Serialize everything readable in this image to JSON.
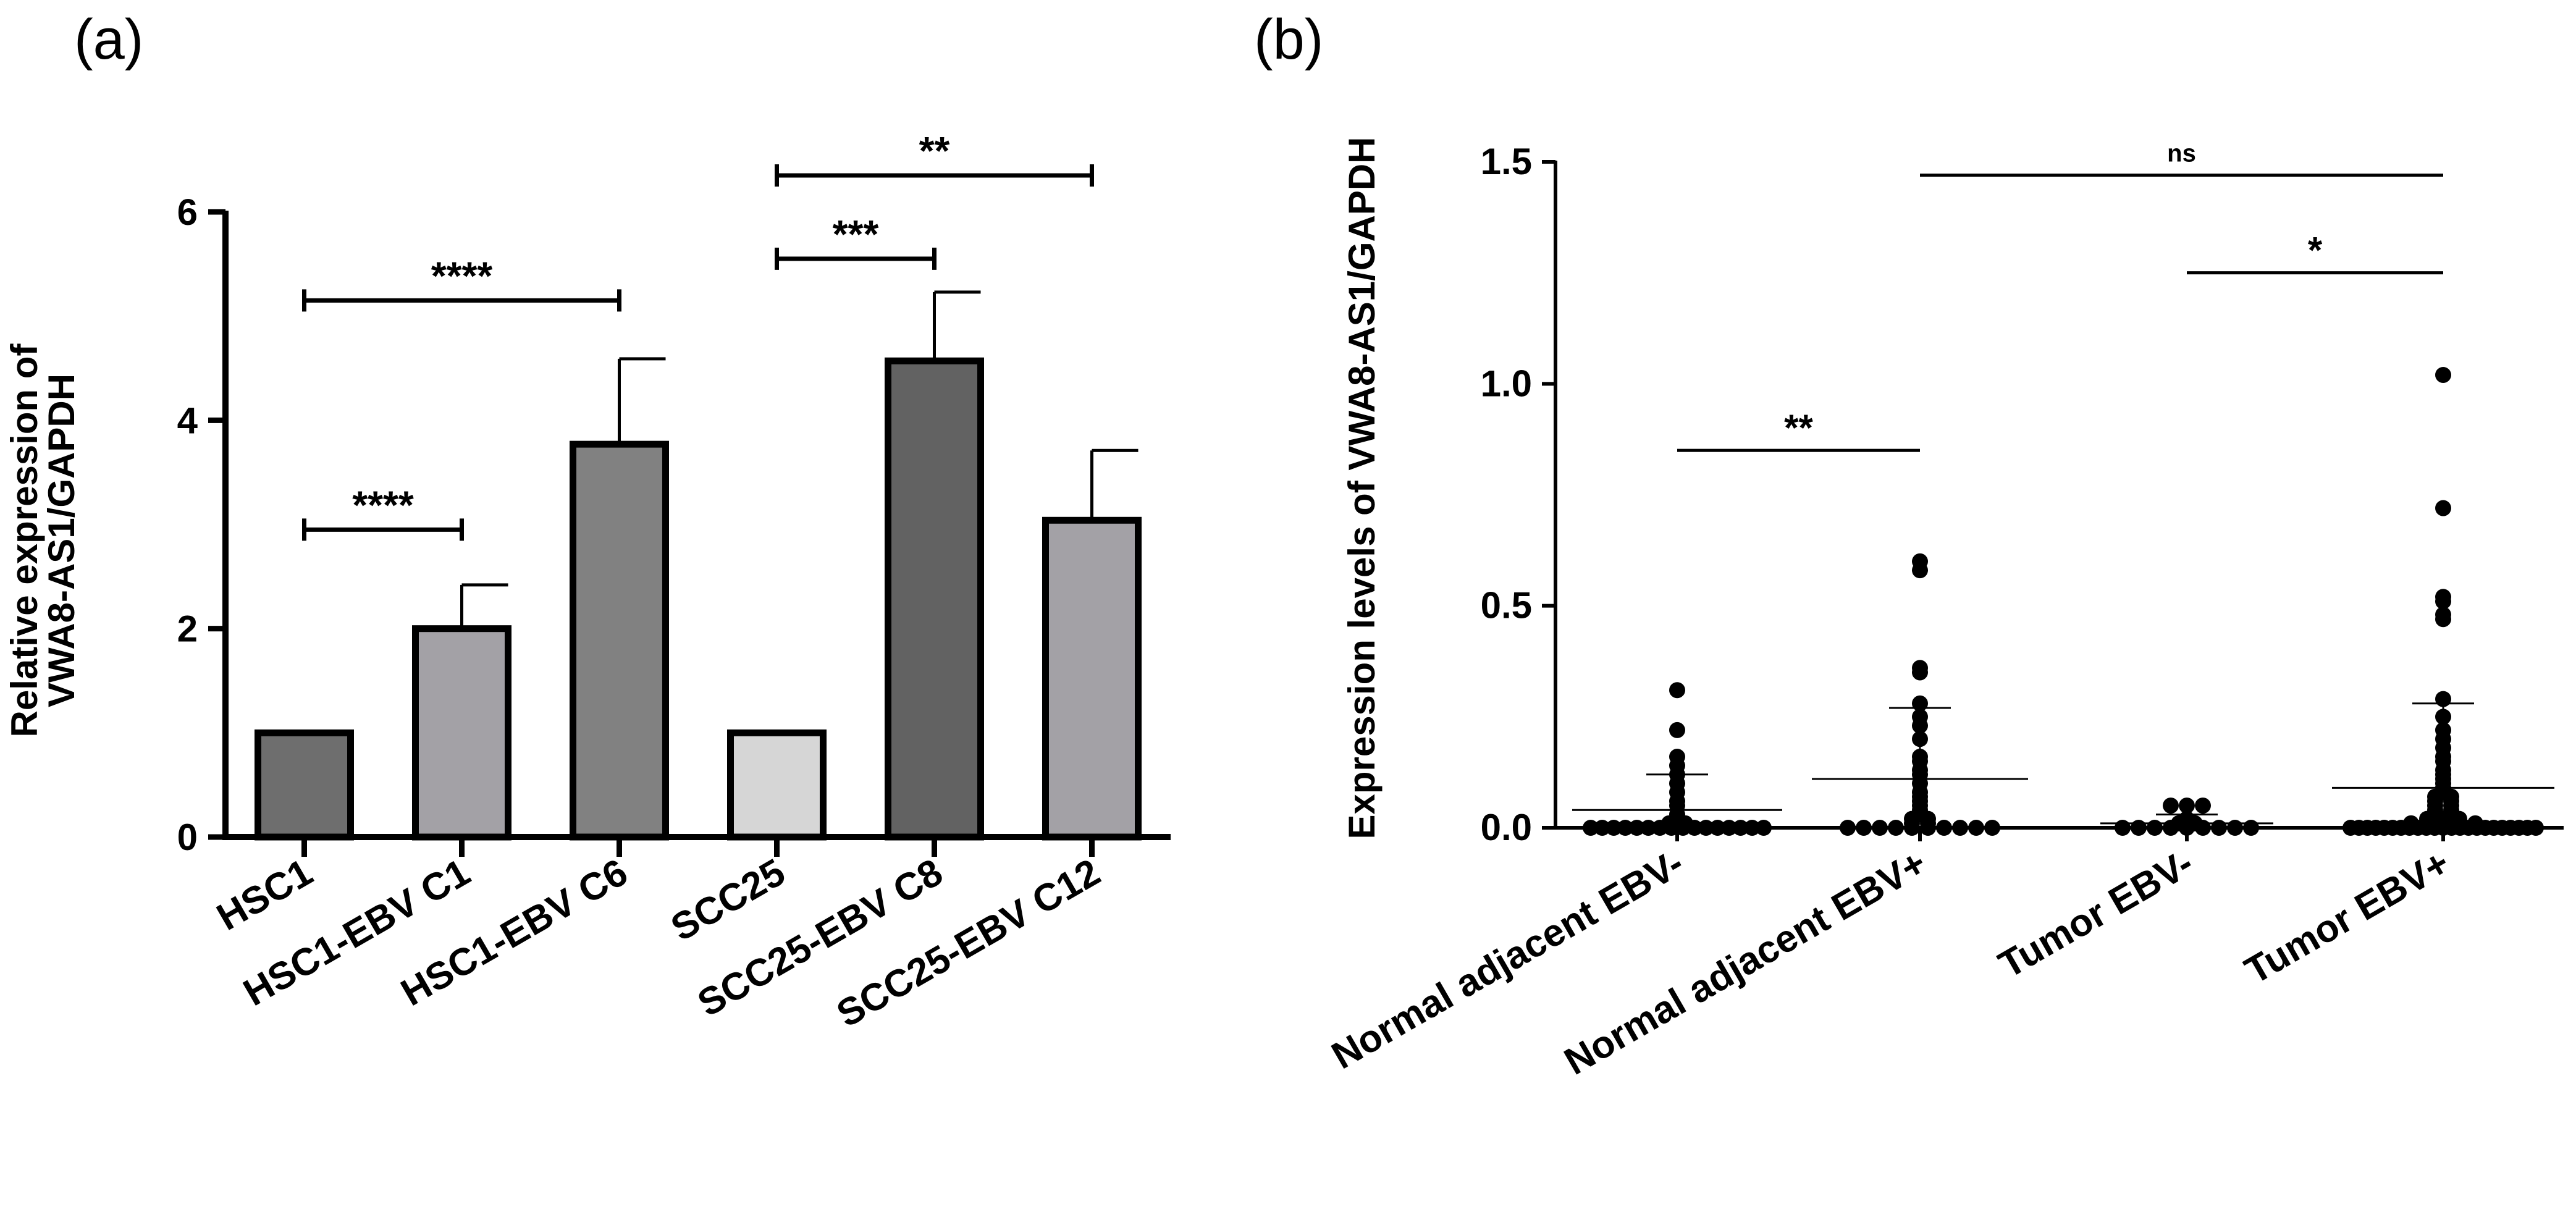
{
  "chart_data": [
    {
      "panel": "(a)",
      "type": "bar",
      "title": "",
      "xlabel": "",
      "ylabel": [
        "Relative expression of",
        "VWA8-AS1/GAPDH"
      ],
      "ylim": [
        0,
        6
      ],
      "yticks": [
        "0",
        "2",
        "4",
        "6"
      ],
      "categories": [
        "HSC1",
        "HSC1-EBV C1",
        "HSC1-EBV C6",
        "SCC25",
        "SCC25-EBV C8",
        "SCC25-EBV C12"
      ],
      "values": [
        1.0,
        2.0,
        3.77,
        1.0,
        4.57,
        3.04
      ],
      "errors": [
        0.0,
        0.42,
        0.82,
        0.0,
        0.66,
        0.67
      ],
      "colors": [
        "#6e6e6e",
        "#a3a1a6",
        "#818181",
        "#d6d6d6",
        "#626262",
        "#a3a1a6"
      ],
      "significance": [
        {
          "from": 0,
          "to": 1,
          "label": "****",
          "y": 2.95
        },
        {
          "from": 0,
          "to": 2,
          "label": "****",
          "y": 5.15
        },
        {
          "from": 3,
          "to": 4,
          "label": "***",
          "y": 5.55
        },
        {
          "from": 3,
          "to": 5,
          "label": "**",
          "y": 6.35
        }
      ]
    },
    {
      "panel": "(b)",
      "type": "scatter",
      "title": "",
      "xlabel": "",
      "ylabel": "Expression levels of VWA8-AS1/GAPDH",
      "ylim": [
        0,
        1.5
      ],
      "yticks": [
        "0.0",
        "0.5",
        "1.0",
        "1.5"
      ],
      "categories": [
        "Normal adjacent EBV-",
        "Normal adjacent EBV+",
        "Tumor EBV-",
        "Tumor EBV+"
      ],
      "groups": [
        {
          "name": "Normal adjacent EBV-",
          "mean": 0.04,
          "sd_upper": 0.12,
          "points": [
            0.31,
            0.22,
            0.16,
            0.14,
            0.12,
            0.1,
            0.08,
            0.06,
            0.05,
            0.03,
            0.02,
            0.01,
            0.01,
            0.0,
            0.0,
            0.0,
            0.0,
            0.0,
            0.0,
            0.0,
            0.0,
            0.0,
            0.0,
            0.0,
            0.0,
            0.0,
            0.0,
            0.0,
            0.0
          ]
        },
        {
          "name": "Normal adjacent EBV+",
          "mean": 0.11,
          "sd_upper": 0.27,
          "points": [
            0.6,
            0.58,
            0.36,
            0.35,
            0.28,
            0.25,
            0.23,
            0.2,
            0.16,
            0.15,
            0.13,
            0.12,
            0.1,
            0.08,
            0.07,
            0.06,
            0.05,
            0.04,
            0.03,
            0.02,
            0.02,
            0.01,
            0.01,
            0.0,
            0.0,
            0.0,
            0.0,
            0.0,
            0.0,
            0.0,
            0.0,
            0.0,
            0.0
          ]
        },
        {
          "name": "Tumor EBV-",
          "mean": 0.01,
          "sd_upper": 0.03,
          "points": [
            0.05,
            0.05,
            0.05,
            0.02,
            0.01,
            0.01,
            0.0,
            0.0,
            0.0,
            0.0,
            0.0,
            0.0,
            0.0,
            0.0,
            0.0
          ]
        },
        {
          "name": "Tumor EBV+",
          "mean": 0.09,
          "sd_upper": 0.28,
          "points": [
            1.02,
            0.72,
            0.52,
            0.51,
            0.48,
            0.47,
            0.29,
            0.25,
            0.22,
            0.2,
            0.18,
            0.16,
            0.15,
            0.13,
            0.12,
            0.11,
            0.1,
            0.09,
            0.08,
            0.07,
            0.07,
            0.06,
            0.06,
            0.05,
            0.05,
            0.04,
            0.04,
            0.03,
            0.03,
            0.02,
            0.02,
            0.02,
            0.01,
            0.01,
            0.01,
            0.01,
            0.01,
            0.0,
            0.0,
            0.0,
            0.0,
            0.0,
            0.0,
            0.0,
            0.0,
            0.0,
            0.0,
            0.0,
            0.0,
            0.0,
            0.0,
            0.0,
            0.0,
            0.0,
            0.0,
            0.0,
            0.0,
            0.0,
            0.0,
            0.0
          ]
        }
      ],
      "significance": [
        {
          "from": 0,
          "to": 1,
          "label": "**",
          "y": 0.85
        },
        {
          "from": 2,
          "to": 3,
          "label": "*",
          "y": 1.25
        },
        {
          "from": 1,
          "to": 3,
          "label": "ns",
          "y": 1.47
        }
      ]
    }
  ]
}
